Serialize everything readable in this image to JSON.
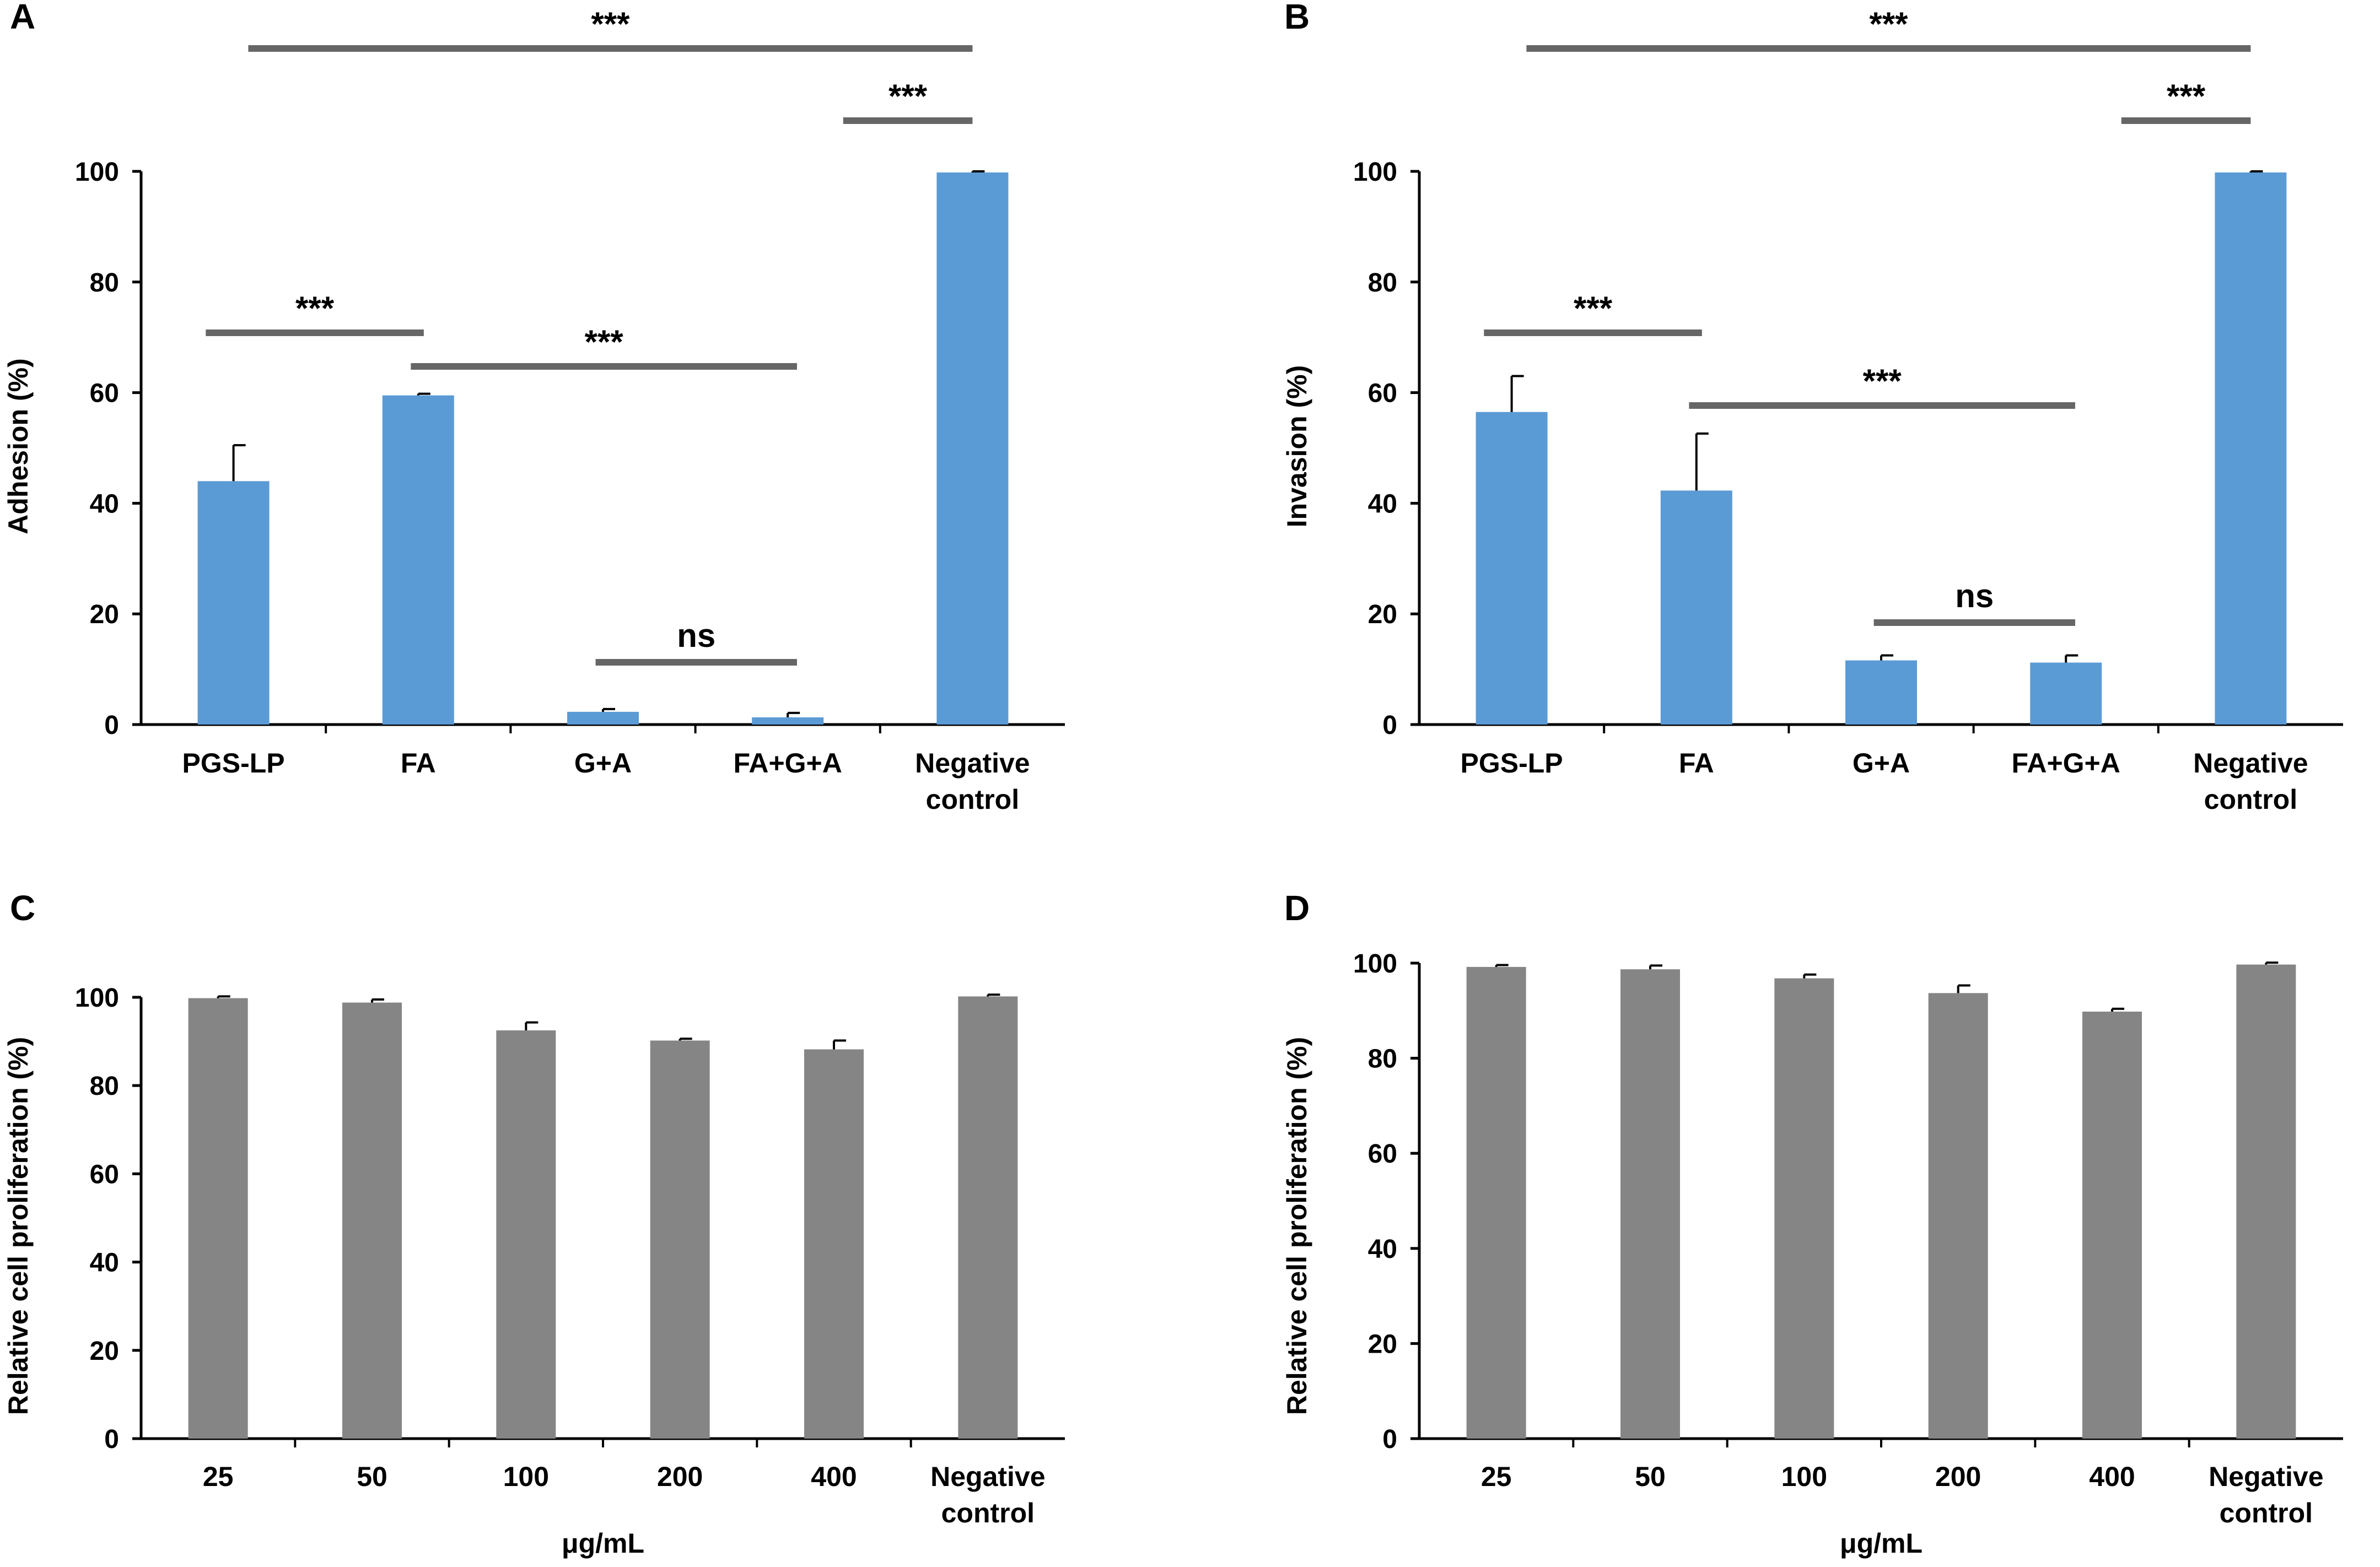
{
  "colors": {
    "blue_bar": "#5b9bd5",
    "gray_bar": "#858585",
    "sig_line": "#666666",
    "axis": "#000000"
  },
  "chart_data": [
    {
      "panel": "A",
      "type": "bar",
      "ylabel": "Adhesion (%)",
      "xlabel": "",
      "ylim": [
        0,
        100
      ],
      "yticks": [
        0,
        20,
        40,
        60,
        80,
        100
      ],
      "categories": [
        [
          "PGS-LP"
        ],
        [
          "FA"
        ],
        [
          "G+A"
        ],
        [
          "FA+G+A"
        ],
        [
          "Negative",
          "control"
        ]
      ],
      "values": [
        44,
        59.5,
        2.3,
        1.3,
        99.8
      ],
      "errors": [
        6.5,
        0.3,
        0.5,
        0.8,
        0.2
      ],
      "bar_color": "#5b9bd5",
      "significance": [
        {
          "from": 0,
          "to": 4,
          "label": "***"
        },
        {
          "from": 3.3,
          "to": 4,
          "label": "***"
        },
        {
          "from": 0,
          "to": 1,
          "label": "***"
        },
        {
          "from": 1,
          "to": 3,
          "label": "***"
        },
        {
          "from": 2,
          "to": 3,
          "label": "ns"
        }
      ]
    },
    {
      "panel": "B",
      "type": "bar",
      "ylabel": "Invasion (%)",
      "xlabel": "",
      "ylim": [
        0,
        100
      ],
      "yticks": [
        0,
        20,
        40,
        60,
        80,
        100
      ],
      "categories": [
        [
          "PGS-LP"
        ],
        [
          "FA"
        ],
        [
          "G+A"
        ],
        [
          "FA+G+A"
        ],
        [
          "Negative",
          "control"
        ]
      ],
      "values": [
        56.5,
        42.3,
        11.6,
        11.2,
        99.8
      ],
      "errors": [
        6.5,
        10.3,
        0.9,
        1.3,
        0.2
      ],
      "bar_color": "#5b9bd5",
      "significance": [
        {
          "from": 0,
          "to": 4,
          "label": "***"
        },
        {
          "from": 3.3,
          "to": 4,
          "label": "***"
        },
        {
          "from": 0,
          "to": 1,
          "label": "***"
        },
        {
          "from": 1,
          "to": 3,
          "label": "***"
        },
        {
          "from": 2,
          "to": 3,
          "label": "ns"
        }
      ]
    },
    {
      "panel": "C",
      "type": "bar",
      "ylabel": "Relative cell proliferation (%)",
      "xlabel": "μg/mL",
      "ylim": [
        0,
        100
      ],
      "yticks": [
        0,
        20,
        40,
        60,
        80,
        100
      ],
      "categories": [
        [
          "25"
        ],
        [
          "50"
        ],
        [
          "100"
        ],
        [
          "200"
        ],
        [
          "400"
        ],
        [
          "Negative",
          "control"
        ]
      ],
      "values": [
        99.8,
        98.8,
        92.5,
        90.2,
        88.2,
        100.2
      ],
      "errors": [
        0.4,
        0.7,
        1.8,
        0.4,
        2.0,
        0.4
      ],
      "bar_color": "#858585",
      "significance": []
    },
    {
      "panel": "D",
      "type": "bar",
      "ylabel": "Relative cell proliferation (%)",
      "xlabel": "μg/mL",
      "ylim": [
        0,
        100
      ],
      "yticks": [
        0,
        20,
        40,
        60,
        80,
        100
      ],
      "categories": [
        [
          "25"
        ],
        [
          "50"
        ],
        [
          "100"
        ],
        [
          "200"
        ],
        [
          "400"
        ],
        [
          "Negative",
          "control"
        ]
      ],
      "values": [
        99.2,
        98.7,
        96.8,
        93.7,
        89.8,
        99.7
      ],
      "errors": [
        0.4,
        0.8,
        0.8,
        1.6,
        0.6,
        0.4
      ],
      "bar_color": "#858585",
      "significance": []
    }
  ]
}
